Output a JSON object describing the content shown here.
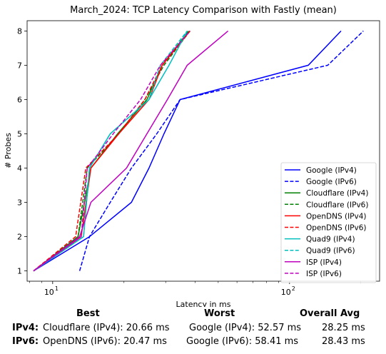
{
  "chart_data": {
    "type": "line",
    "title": "March_2024: TCP Latency Comparison with Fastly (mean)",
    "xlabel": "Latency in ms",
    "ylabel": "# Probes",
    "xscale": "log",
    "xlim": [
      7.8,
      240
    ],
    "ylim": [
      0.7,
      8.3
    ],
    "x_ticks": [
      {
        "value": 10,
        "base": "10",
        "exp": "1"
      },
      {
        "value": 100,
        "base": "10",
        "exp": "2"
      }
    ],
    "y_ticks": [
      1,
      2,
      3,
      4,
      5,
      6,
      7,
      8
    ],
    "grid": false,
    "legend_position": "lower-right",
    "series": [
      {
        "name": "Google (IPv4)",
        "color": "#0000ff",
        "dash": "solid",
        "x": [
          8.3,
          14.3,
          21.5,
          25.5,
          29.5,
          34.5,
          120,
          165
        ],
        "y": [
          1,
          2,
          3,
          4,
          5,
          6,
          7,
          8
        ]
      },
      {
        "name": "Google (IPv6)",
        "color": "#0000ff",
        "dash": "dashed",
        "x": [
          13.0,
          14.3,
          17.5,
          21.5,
          27.5,
          34.5,
          145,
          205
        ],
        "y": [
          1,
          2,
          3,
          4,
          5,
          6,
          7,
          8
        ]
      },
      {
        "name": "Cloudflare (IPv4)",
        "color": "#008000",
        "dash": "solid",
        "x": [
          8.3,
          12.8,
          14.5,
          18.8,
          25.0,
          29.0,
          37.5
        ],
        "y": [
          1,
          2,
          4,
          5,
          6,
          7,
          8
        ]
      },
      {
        "name": "Cloudflare (IPv6)",
        "color": "#008000",
        "dash": "dashed",
        "x": [
          8.3,
          12.8,
          14.0,
          19.0,
          24.5,
          29.5,
          38.0
        ],
        "y": [
          1,
          2,
          4,
          5,
          6,
          7,
          8
        ]
      },
      {
        "name": "OpenDNS (IPv4)",
        "color": "#ff0000",
        "dash": "solid",
        "x": [
          8.3,
          13.2,
          14.5,
          19.0,
          25.5,
          29.0,
          38.0
        ],
        "y": [
          1,
          2,
          4,
          5,
          6,
          7,
          8
        ]
      },
      {
        "name": "OpenDNS (IPv6)",
        "color": "#ff0000",
        "dash": "dashed",
        "x": [
          8.3,
          12.5,
          13.8,
          19.0,
          24.5,
          29.0,
          38.0
        ],
        "y": [
          1,
          2,
          4,
          5,
          6,
          7,
          8
        ]
      },
      {
        "name": "Quad9 (IPv4)",
        "color": "#00bfbf",
        "dash": "solid",
        "x": [
          8.3,
          13.5,
          14.3,
          17.5,
          25.5,
          31.0,
          37.0
        ],
        "y": [
          1,
          2,
          4,
          5,
          6,
          7,
          8
        ]
      },
      {
        "name": "Quad9 (IPv6)",
        "color": "#00bfbf",
        "dash": "dashed",
        "x": [
          8.3,
          13.5,
          14.3,
          17.5,
          25.5,
          28.5,
          37.0
        ],
        "y": [
          1,
          2,
          4,
          5,
          6,
          7,
          8
        ]
      },
      {
        "name": "ISP (IPv4)",
        "color": "#bf00bf",
        "dash": "solid",
        "x": [
          8.3,
          13.0,
          14.5,
          20.5,
          25.0,
          30.5,
          37.0,
          55.0
        ],
        "y": [
          1,
          2,
          3,
          4,
          5,
          6,
          7,
          8
        ]
      },
      {
        "name": "ISP (IPv6)",
        "color": "#bf00bf",
        "dash": "dashed",
        "x": [
          8.3,
          13.2,
          14.0,
          18.0,
          23.5,
          28.5,
          38.0
        ],
        "y": [
          1,
          2,
          4,
          5,
          6,
          7,
          8
        ]
      }
    ]
  },
  "summary": {
    "headers": {
      "best": "Best",
      "worst": "Worst",
      "avg": "Overall Avg"
    },
    "rows": [
      {
        "label": "IPv4:",
        "best": "Cloudflare (IPv4): 20.66 ms",
        "worst": "Google (IPv4): 52.57 ms",
        "avg": "28.25 ms"
      },
      {
        "label": "IPv6:",
        "best": "OpenDNS (IPv6): 20.47 ms",
        "worst": "Google (IPv6): 58.41 ms",
        "avg": "28.43 ms"
      }
    ]
  }
}
